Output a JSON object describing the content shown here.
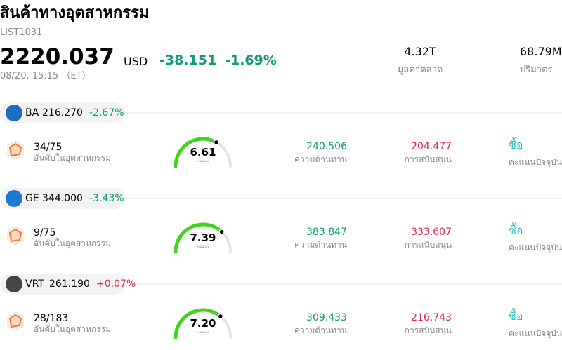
{
  "header": {
    "title": "สินค้าทางอุตสาหกรรม",
    "code": "LIST1031",
    "price": "2220.037",
    "currency": "USD",
    "change": "-38.151",
    "change_pct": "-1.69%",
    "time": "08/20, 15:15 （ET）",
    "stats": [
      {
        "value": "4.32T",
        "label": "มูลค่าตลาด"
      },
      {
        "value": "68.79M",
        "label": "ปริมาตร"
      }
    ]
  },
  "gauge_range": [
    0,
    10
  ],
  "stocks": [
    {
      "ticker": "BA",
      "price": "216.270",
      "change": "-2.67%",
      "rank": "34/75",
      "rank_label": "อันดับในอุตสาหกรรม",
      "score": 6.61,
      "score_label": "คะแนนหุ้น",
      "resistance": "240.506",
      "resistance_label": "ความต้านทาน",
      "support": "204.477",
      "support_label": "การสนับสนุน",
      "signal": "ซื้อ",
      "signal_label": "คะแนนปัจจุบัน"
    },
    {
      "ticker": "GE",
      "price": "344.000",
      "change": "-3.43%",
      "rank": "9/75",
      "rank_label": "อันดับในอุตสาหกรรม",
      "score": 7.39,
      "score_label": "คะแนนหุ้น",
      "resistance": "383.847",
      "resistance_label": "ความต้านทาน",
      "support": "333.607",
      "support_label": "การสนับสนุน",
      "signal": "ซื้อ",
      "signal_label": "คะแนนปัจจุบัน"
    },
    {
      "ticker": "VRT",
      "price": "261.190",
      "change": "+0.07%",
      "rank": "28/183",
      "rank_label": "อันดับในอุตสาหกรรม",
      "score": {
        "value": 7.2,
        "label": "7.20"
      },
      "score_label": "คะแนนหุ้น",
      "resistance": "309.433",
      "resistance_label": "ความต้านทาน",
      "support": "216.743",
      "support_label": "การสนับสนุน",
      "signal": "ซื้อ",
      "signal_label": "คะแนนปัจจุบัน"
    }
  ]
}
